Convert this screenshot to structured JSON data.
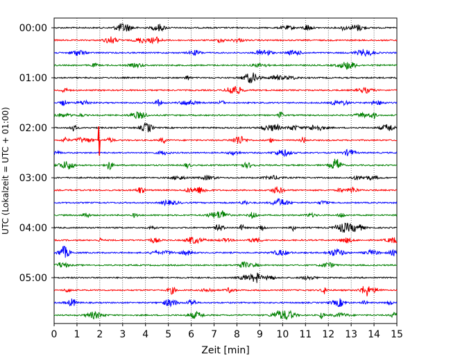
{
  "chart_data": {
    "type": "line",
    "title": "",
    "xlabel": "Zeit  [min]",
    "ylabel": "UTC (Lokalzeit = UTC + 01:00)",
    "xlim": [
      0,
      15
    ],
    "x_ticks": [
      0,
      1,
      2,
      3,
      4,
      5,
      6,
      7,
      8,
      9,
      10,
      11,
      12,
      13,
      14,
      15
    ],
    "x_tick_labels": [
      "0",
      "1",
      "2",
      "3",
      "4",
      "5",
      "6",
      "7",
      "8",
      "9",
      "10",
      "11",
      "12",
      "13",
      "14",
      "15"
    ],
    "y_tick_labels": [
      "00:00",
      "01:00",
      "02:00",
      "03:00",
      "04:00",
      "05:00"
    ],
    "minutes_per_line": 15,
    "grid": "vertical-dotted",
    "trace_colors": [
      "#000000",
      "#ff0000",
      "#0000ff",
      "#008000"
    ],
    "num_traces": 24,
    "events": [
      {
        "trace_start": "02:15",
        "minute": 1.95,
        "note": "large spike"
      }
    ]
  }
}
